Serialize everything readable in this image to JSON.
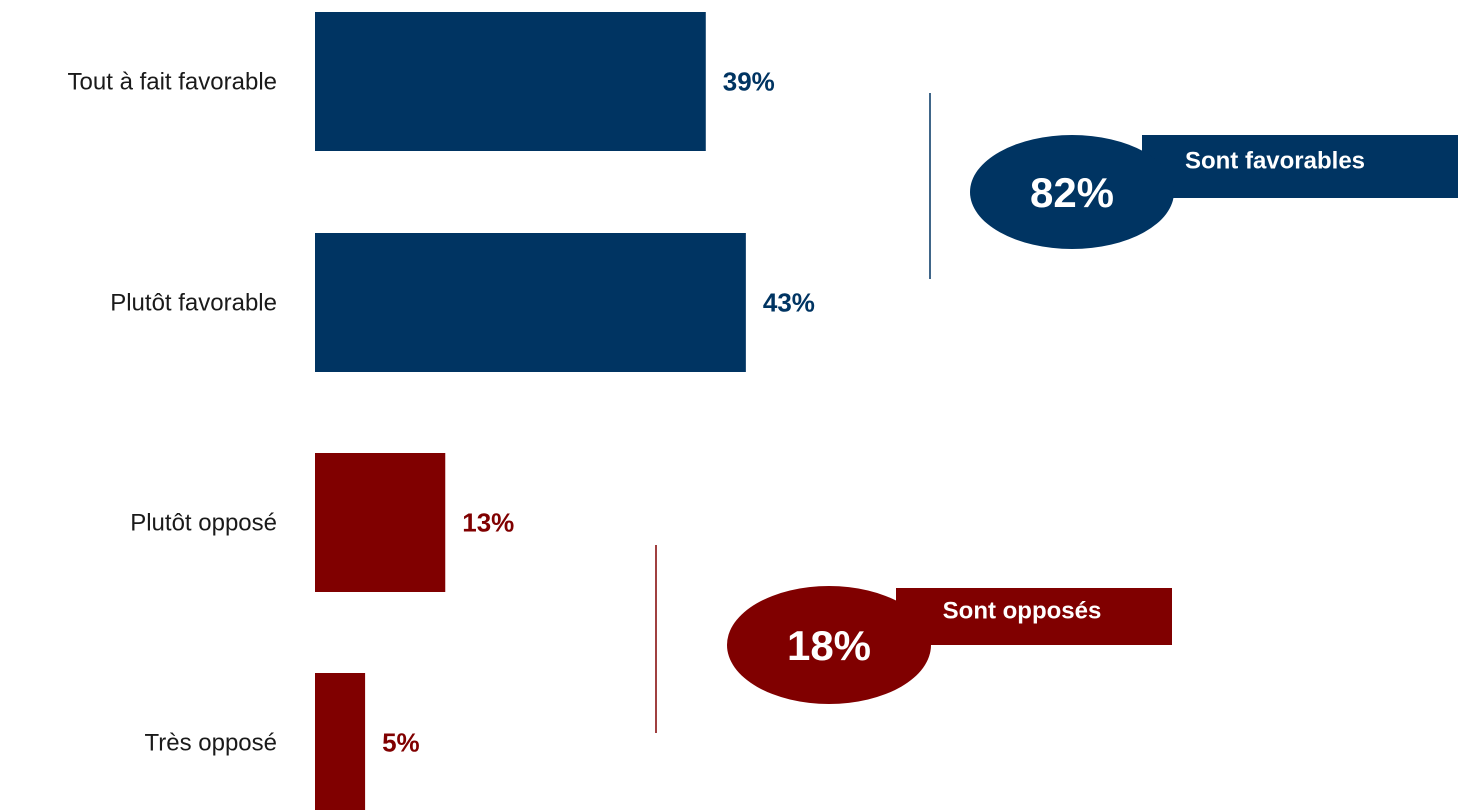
{
  "colors": {
    "favorable": "#003462",
    "opposed": "#800000"
  },
  "chart_data": {
    "type": "bar",
    "orientation": "horizontal",
    "categories": [
      "Tout à fait favorable",
      "Plutôt favorable",
      "Plutôt opposé",
      "Très opposé"
    ],
    "values": [
      39,
      43,
      13,
      5
    ],
    "value_labels": [
      "39%",
      "43%",
      "13%",
      "5%"
    ],
    "value_unit": "%",
    "bar_colors": [
      "#003462",
      "#003462",
      "#800000",
      "#800000"
    ],
    "xlim": [
      0,
      100
    ],
    "grid": false,
    "legend": "none",
    "groups": [
      {
        "label": "Sont favorables",
        "value": 82,
        "value_label": "82%",
        "color": "#003462",
        "members": [
          0,
          1
        ]
      },
      {
        "label": "Sont opposés",
        "value": 18,
        "value_label": "18%",
        "color": "#800000",
        "members": [
          2,
          3
        ]
      }
    ]
  }
}
